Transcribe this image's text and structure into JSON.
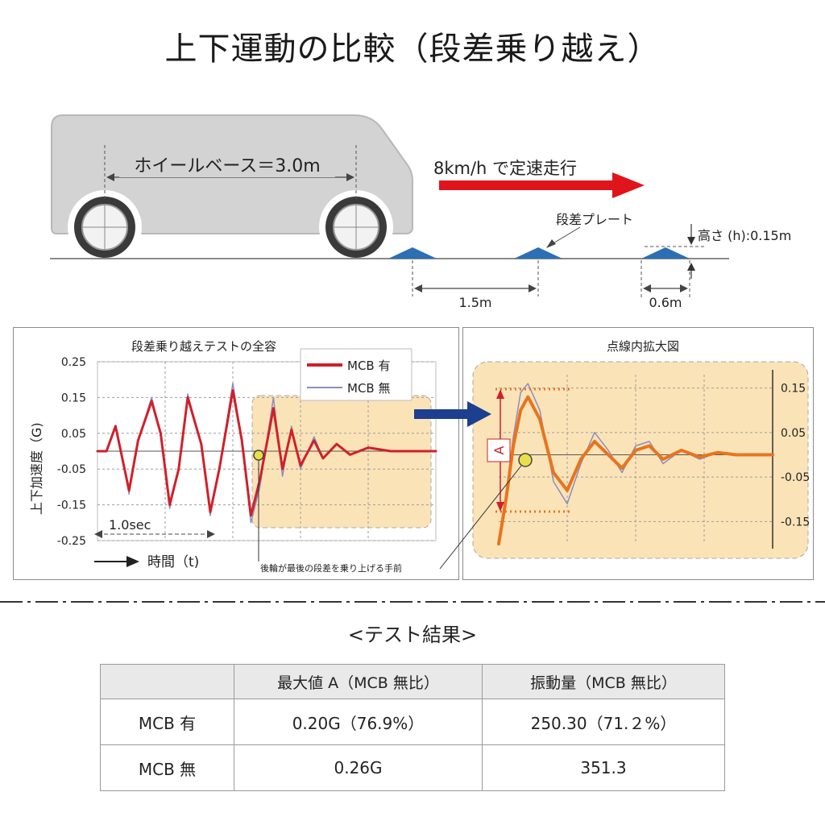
{
  "page": {
    "title": "上下運動の比較（段差乗り越え）"
  },
  "diagram": {
    "wheelbase_label": "ホイールベース＝3.0m",
    "speed_label": "8km/h で定速走行",
    "plate_label": "段差プレート",
    "height_label": "高さ (h):0.15m",
    "spacing_label": "1.5m",
    "plate_width_label": "0.6m",
    "colors": {
      "arrow": "#e0151b",
      "plate": "#2c6fb5",
      "van": "#d2d2d2"
    }
  },
  "chart_data": [
    {
      "type": "line",
      "title": "段差乗り越えテストの全容",
      "ylabel": "上下加速度（G)",
      "xlabel": "時間（t)",
      "yticks": [
        "0.25",
        "0.15",
        "0.05",
        "-0.05",
        "-0.15",
        "-0.25"
      ],
      "ylim": [
        -0.25,
        0.25
      ],
      "xlim": [
        0,
        7.5
      ],
      "grid": true,
      "legend_position": "top-right",
      "interval_label": "1.0sec",
      "annotation": "後輪が最後の段差を乗り上げる手前",
      "series": [
        {
          "name": "MCB 有",
          "color": "#d0202a",
          "x": [
            0,
            0.2,
            0.4,
            0.5,
            0.7,
            0.9,
            1.2,
            1.4,
            1.6,
            1.8,
            2.0,
            2.3,
            2.5,
            2.7,
            3.0,
            3.2,
            3.4,
            3.6,
            3.9,
            4.1,
            4.3,
            4.5,
            4.8,
            5.0,
            5.3,
            5.6,
            6.0,
            6.5,
            7.0,
            7.5
          ],
          "values": [
            0.0,
            0.0,
            0.07,
            0.01,
            -0.11,
            0.03,
            0.14,
            0.05,
            -0.15,
            -0.05,
            0.15,
            0.02,
            -0.17,
            -0.05,
            0.17,
            0.03,
            -0.18,
            -0.08,
            0.12,
            -0.05,
            0.06,
            -0.04,
            0.03,
            -0.02,
            0.02,
            -0.01,
            0.01,
            0.0,
            0.0,
            0.0
          ]
        },
        {
          "name": "MCB 無",
          "color": "#8a8ec0",
          "x": [
            0,
            0.2,
            0.4,
            0.5,
            0.7,
            0.9,
            1.2,
            1.4,
            1.6,
            1.8,
            2.0,
            2.3,
            2.5,
            2.7,
            3.0,
            3.2,
            3.4,
            3.6,
            3.9,
            4.1,
            4.3,
            4.5,
            4.8,
            5.0,
            5.3,
            5.6,
            6.0,
            6.5,
            7.0,
            7.5
          ],
          "values": [
            0.0,
            0.0,
            0.07,
            0.01,
            -0.12,
            0.03,
            0.15,
            0.05,
            -0.16,
            -0.05,
            0.16,
            0.02,
            -0.18,
            -0.05,
            0.19,
            0.03,
            -0.2,
            -0.1,
            0.15,
            -0.07,
            0.07,
            -0.05,
            0.04,
            -0.02,
            0.02,
            -0.01,
            0.01,
            0.0,
            0.0,
            0.0
          ]
        }
      ]
    },
    {
      "type": "line",
      "title": "点線内拡大図",
      "yticks": [
        "0.15",
        "0.05",
        "-0.05",
        "-0.15"
      ],
      "ylim": [
        -0.2,
        0.18
      ],
      "xlim": [
        0,
        3.0
      ],
      "grid": true,
      "amplitude_label": "A",
      "series": [
        {
          "name": "MCB 有",
          "color": "#e8741e",
          "x": [
            0,
            0.08,
            0.16,
            0.24,
            0.32,
            0.45,
            0.6,
            0.75,
            0.9,
            1.05,
            1.2,
            1.35,
            1.5,
            1.65,
            1.8,
            2.0,
            2.2,
            2.4,
            2.6,
            2.8,
            3.0
          ],
          "values": [
            -0.2,
            -0.1,
            0.02,
            0.1,
            0.13,
            0.08,
            -0.04,
            -0.08,
            -0.01,
            0.03,
            0.0,
            -0.03,
            0.01,
            0.02,
            -0.01,
            0.01,
            -0.005,
            0.005,
            0.0,
            0.0,
            0.0
          ]
        },
        {
          "name": "MCB 無",
          "color": "#8a8ec0",
          "x": [
            0,
            0.08,
            0.16,
            0.24,
            0.32,
            0.45,
            0.6,
            0.75,
            0.9,
            1.05,
            1.2,
            1.35,
            1.5,
            1.65,
            1.8,
            2.0,
            2.2,
            2.4,
            2.6,
            2.8,
            3.0
          ],
          "values": [
            -0.2,
            -0.09,
            0.04,
            0.14,
            0.16,
            0.1,
            -0.06,
            -0.11,
            -0.02,
            0.05,
            0.01,
            -0.04,
            0.02,
            0.03,
            -0.02,
            0.01,
            -0.01,
            0.005,
            0.0,
            0.0,
            0.0
          ]
        }
      ]
    }
  ],
  "results": {
    "title": "<テスト結果>",
    "columns": [
      "",
      "最大値 A（MCB 無比）",
      "振動量（MCB 無比）"
    ],
    "rows": [
      {
        "label": "MCB 有",
        "max": "0.20G（76.9%）",
        "vibration": "250.30（71.２%）"
      },
      {
        "label": "MCB 無",
        "max": "0.26G",
        "vibration": "351.3"
      }
    ]
  }
}
